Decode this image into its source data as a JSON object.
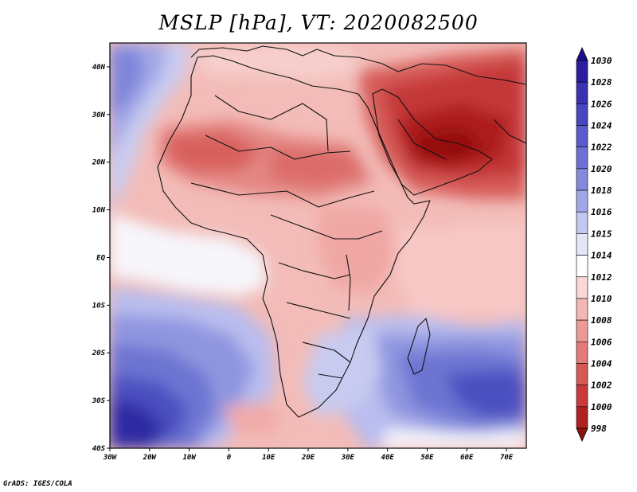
{
  "title": "MSLP [hPa], VT: 2020082500",
  "credit": "GrADS: IGES/COLA",
  "map": {
    "region": "Africa and Arabian Peninsula",
    "lon_range": [
      -30,
      75
    ],
    "lat_range": [
      -40,
      45
    ],
    "x_ticks": [
      "30W",
      "20W",
      "10W",
      "0",
      "10E",
      "20E",
      "30E",
      "40E",
      "50E",
      "60E",
      "70E"
    ],
    "y_ticks": [
      "40N",
      "30N",
      "20N",
      "10N",
      "EQ",
      "10S",
      "20S",
      "30S",
      "40S"
    ]
  },
  "colorbar": {
    "labels": [
      "1030",
      "1028",
      "1026",
      "1024",
      "1022",
      "1020",
      "1018",
      "1016",
      "1015",
      "1014",
      "1012",
      "1010",
      "1008",
      "1006",
      "1004",
      "1002",
      "1000",
      "998"
    ],
    "colors": [
      "#1a0f8a",
      "#2a1e9e",
      "#3b31b0",
      "#4a45c0",
      "#5b5acb",
      "#6e71d4",
      "#8489dc",
      "#a1a6e6",
      "#c2c6f0",
      "#e4e6f8",
      "#ffffff",
      "#f9d8d6",
      "#f3b8b5",
      "#ec9a96",
      "#e37a77",
      "#d85856",
      "#c93b3b",
      "#b02020",
      "#8e1010"
    ]
  }
}
